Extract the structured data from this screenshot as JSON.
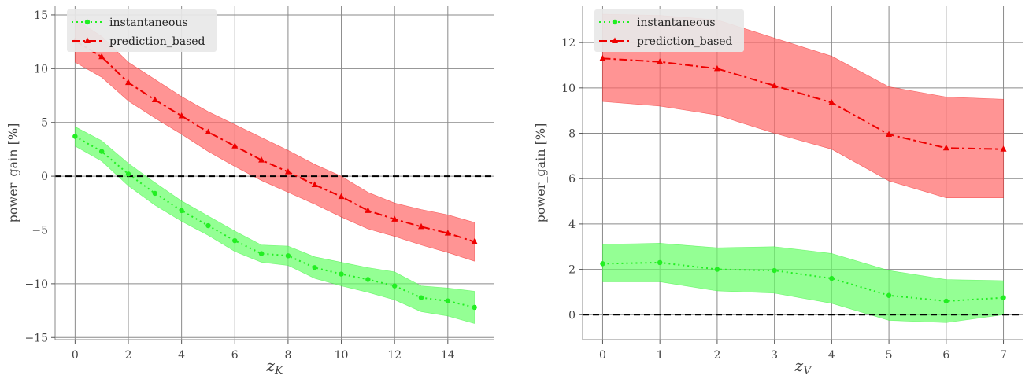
{
  "chart_data": [
    {
      "type": "line",
      "xlabel": "z",
      "xlabel_sub": "K",
      "ylabel": "power_gain [%]",
      "xlim": [
        -0.75,
        15.75
      ],
      "ylim": [
        -15.2,
        15.8
      ],
      "xticks": [
        0,
        2,
        4,
        6,
        8,
        10,
        12,
        14
      ],
      "yticks": [
        -15,
        -10,
        -5,
        0,
        5,
        10,
        15
      ],
      "ytick_labels": [
        "−15",
        "−10",
        "−5",
        "0",
        "5",
        "10",
        "15"
      ],
      "grid": true,
      "legend_position": "top-left",
      "reference_line": 0,
      "x": [
        0,
        1,
        2,
        3,
        4,
        5,
        6,
        7,
        8,
        9,
        10,
        11,
        12,
        13,
        14,
        15
      ],
      "series": [
        {
          "name": "instantaneous",
          "color": "#22ee22",
          "band_color": "#66ff66",
          "linestyle": "dotted",
          "marker": "circle",
          "values": [
            3.7,
            2.3,
            0.2,
            -1.6,
            -3.2,
            -4.6,
            -6.0,
            -7.2,
            -7.4,
            -8.5,
            -9.1,
            -9.6,
            -10.2,
            -11.3,
            -11.6,
            -12.2
          ],
          "lower": [
            2.8,
            1.4,
            -0.9,
            -2.7,
            -4.2,
            -5.5,
            -7.0,
            -8.0,
            -8.3,
            -9.5,
            -10.2,
            -10.8,
            -11.5,
            -12.6,
            -13.0,
            -13.7
          ],
          "upper": [
            4.6,
            3.3,
            1.2,
            -0.6,
            -2.3,
            -3.7,
            -5.1,
            -6.4,
            -6.5,
            -7.5,
            -8.0,
            -8.5,
            -8.9,
            -10.2,
            -10.4,
            -10.7
          ]
        },
        {
          "name": "prediction_based",
          "color": "#ee0000",
          "band_color": "#ff6666",
          "linestyle": "dashdot",
          "marker": "triangle",
          "values": [
            12.6,
            11.1,
            8.7,
            7.1,
            5.6,
            4.1,
            2.8,
            1.5,
            0.4,
            -0.8,
            -1.9,
            -3.2,
            -4.0,
            -4.7,
            -5.3,
            -6.1
          ],
          "lower": [
            10.6,
            9.2,
            7.0,
            5.4,
            3.9,
            2.3,
            0.9,
            -0.4,
            -1.5,
            -2.6,
            -3.8,
            -4.9,
            -5.6,
            -6.4,
            -7.1,
            -7.9
          ],
          "upper": [
            14.6,
            13.0,
            10.6,
            9.0,
            7.4,
            6.0,
            4.8,
            3.6,
            2.4,
            1.1,
            0.0,
            -1.5,
            -2.5,
            -3.1,
            -3.6,
            -4.3
          ]
        }
      ]
    },
    {
      "type": "line",
      "xlabel": "z",
      "xlabel_sub": "V",
      "ylabel": "power_gain [%]",
      "xlim": [
        -0.35,
        7.35
      ],
      "ylim": [
        -1.1,
        13.6
      ],
      "xticks": [
        0,
        1,
        2,
        3,
        4,
        5,
        6,
        7
      ],
      "yticks": [
        0,
        2,
        4,
        6,
        8,
        10,
        12
      ],
      "ytick_labels": [
        "0",
        "2",
        "4",
        "6",
        "8",
        "10",
        "12"
      ],
      "grid": true,
      "legend_position": "top-left",
      "reference_line": 0,
      "x": [
        0,
        1,
        2,
        3,
        4,
        5,
        6,
        7
      ],
      "series": [
        {
          "name": "instantaneous",
          "color": "#22ee22",
          "band_color": "#66ff66",
          "linestyle": "dotted",
          "marker": "circle",
          "values": [
            2.25,
            2.3,
            2.0,
            1.95,
            1.6,
            0.85,
            0.6,
            0.75
          ],
          "lower": [
            1.45,
            1.45,
            1.05,
            0.95,
            0.5,
            -0.25,
            -0.35,
            0.0
          ],
          "upper": [
            3.1,
            3.15,
            2.95,
            3.0,
            2.7,
            1.95,
            1.55,
            1.5
          ]
        },
        {
          "name": "prediction_based",
          "color": "#ee0000",
          "band_color": "#ff6666",
          "linestyle": "dashdot",
          "marker": "triangle",
          "values": [
            11.3,
            11.15,
            10.85,
            10.1,
            9.35,
            7.95,
            7.35,
            7.3
          ],
          "lower": [
            9.4,
            9.2,
            8.8,
            8.0,
            7.3,
            5.9,
            5.15,
            5.15
          ],
          "upper": [
            13.25,
            13.2,
            13.0,
            12.2,
            11.4,
            10.05,
            9.6,
            9.5
          ]
        }
      ]
    }
  ]
}
